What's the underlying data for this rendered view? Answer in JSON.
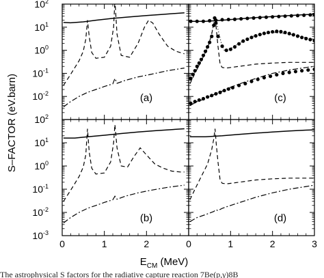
{
  "figure": {
    "ylabel": "S–FACTOR (eV.barn)",
    "xlabel_main": "E",
    "xlabel_sub": "CM",
    "xlabel_unit": " (MeV)",
    "caption_fragment": "The astrophysical S factors for the radiative capture reaction 7Be(p,γ)8B"
  },
  "chart_data": [
    {
      "panel": "a",
      "label": "(a)",
      "type": "line",
      "xlim": [
        0,
        3
      ],
      "ylim_log10": [
        -3,
        2
      ],
      "yscale": "log",
      "xticks": [
        "0",
        "1",
        "2",
        "3"
      ],
      "yticks": [
        -3,
        -2,
        -1,
        0,
        1,
        2
      ],
      "series": [
        {
          "style": "solid",
          "x": [
            0.03,
            0.2,
            0.5,
            0.8,
            1.2,
            1.6,
            2.0,
            2.4,
            2.9
          ],
          "y": [
            16,
            15.5,
            17,
            20,
            24,
            28,
            32,
            36,
            42
          ]
        },
        {
          "style": "dashed",
          "x": [
            0.03,
            0.2,
            0.4,
            0.5,
            0.56,
            0.6,
            0.64,
            0.7,
            0.8,
            1.0,
            1.15,
            1.22,
            1.25,
            1.3,
            1.4,
            1.6,
            1.8,
            1.95,
            2.05,
            2.15,
            2.3,
            2.5,
            2.7,
            2.9
          ],
          "y": [
            0.03,
            0.09,
            0.35,
            0.9,
            3,
            20,
            4,
            0.8,
            0.45,
            0.5,
            1.5,
            10,
            150,
            5,
            0.6,
            0.5,
            2,
            10,
            20,
            15,
            5,
            1.5,
            0.9,
            0.7
          ]
        },
        {
          "style": "dash-dot",
          "x": [
            0.03,
            0.2,
            0.4,
            0.6,
            0.8,
            1.0,
            1.2,
            1.25,
            1.3,
            1.5,
            1.8,
            2.1,
            2.5,
            2.9
          ],
          "y": [
            0.0035,
            0.006,
            0.01,
            0.015,
            0.02,
            0.027,
            0.035,
            0.06,
            0.037,
            0.05,
            0.07,
            0.09,
            0.13,
            0.17
          ]
        }
      ]
    },
    {
      "panel": "b",
      "label": "(b)",
      "type": "line",
      "xlim": [
        0,
        3
      ],
      "ylim_log10": [
        -3,
        2
      ],
      "yscale": "log",
      "xticks": [
        "0",
        "1",
        "2",
        "3"
      ],
      "yticks": [
        -3,
        -2,
        -1,
        0,
        1,
        2
      ],
      "series": [
        {
          "style": "solid",
          "x": [
            0.03,
            0.3,
            0.6,
            1.0,
            1.4,
            1.8,
            2.2,
            2.6,
            2.9
          ],
          "y": [
            16,
            16,
            18,
            21,
            25,
            29,
            33,
            37,
            40
          ]
        },
        {
          "style": "dashed",
          "x": [
            0.03,
            0.2,
            0.4,
            0.5,
            0.56,
            0.6,
            0.64,
            0.7,
            0.8,
            1.0,
            1.15,
            1.22,
            1.25,
            1.3,
            1.4,
            1.55,
            1.7,
            1.85,
            2.0,
            2.2,
            2.4,
            2.6,
            2.8,
            2.9
          ],
          "y": [
            0.03,
            0.09,
            0.35,
            0.9,
            3,
            40,
            4,
            0.8,
            0.45,
            0.5,
            1.5,
            10,
            60,
            6,
            1.0,
            0.9,
            2.5,
            6,
            3,
            1.2,
            0.8,
            0.6,
            0.55,
            0.55
          ]
        },
        {
          "style": "dash-dot",
          "x": [
            0.03,
            0.2,
            0.4,
            0.6,
            0.8,
            1.0,
            1.2,
            1.25,
            1.3,
            1.5,
            1.8,
            2.1,
            2.5,
            2.9
          ],
          "y": [
            0.0035,
            0.006,
            0.01,
            0.015,
            0.02,
            0.027,
            0.035,
            0.05,
            0.037,
            0.05,
            0.07,
            0.09,
            0.12,
            0.15
          ]
        }
      ]
    },
    {
      "panel": "c",
      "label": "(c)",
      "type": "line",
      "xlim": [
        0,
        3
      ],
      "ylim_log10": [
        -3,
        2
      ],
      "yscale": "log",
      "xticks": [
        "0",
        "1",
        "2",
        "3"
      ],
      "yticks": [
        -3,
        -2,
        -1,
        0,
        1,
        2
      ],
      "series": [
        {
          "style": "solid",
          "x": [
            0.03,
            0.4,
            0.8,
            1.2,
            1.6,
            2.0,
            2.4,
            2.8,
            3.0
          ],
          "y": [
            18,
            18,
            20,
            23,
            26,
            29,
            32,
            35,
            36
          ]
        },
        {
          "style": "dashed",
          "x": [
            0.03,
            0.15,
            0.3,
            0.45,
            0.55,
            0.6,
            0.63,
            0.66,
            0.7,
            0.75,
            0.8,
            0.9,
            1.2,
            1.6,
            2.0,
            2.4,
            2.8,
            3.0
          ],
          "y": [
            0.035,
            0.1,
            0.35,
            1.2,
            5,
            15,
            30,
            8,
            1.5,
            0.25,
            0.18,
            0.17,
            0.2,
            0.25,
            0.28,
            0.3,
            0.3,
            0.3
          ]
        },
        {
          "style": "dash-dot",
          "x": [
            0.03,
            0.2,
            0.4,
            0.6,
            0.8,
            1.0,
            1.3,
            1.6,
            2.0,
            2.4,
            2.8,
            3.0
          ],
          "y": [
            0.004,
            0.006,
            0.008,
            0.012,
            0.017,
            0.025,
            0.04,
            0.06,
            0.1,
            0.14,
            0.18,
            0.2
          ]
        },
        {
          "style": "dotted",
          "x": [
            0.03,
            0.2,
            0.35,
            0.5,
            0.58,
            0.62,
            0.66,
            0.7,
            0.78,
            0.85,
            1.0,
            1.3,
            1.6,
            2.0,
            2.4,
            2.8,
            3.0
          ],
          "y": [
            0.05,
            0.15,
            0.5,
            2.5,
            10,
            25,
            20,
            8,
            2,
            1,
            1.2,
            2.5,
            4.5,
            6,
            5,
            3.5,
            3
          ]
        },
        {
          "style": "markers",
          "x": [
            0.05,
            0.1,
            0.15,
            0.2,
            0.25,
            0.3,
            0.35,
            0.4,
            0.45,
            0.5,
            0.55,
            0.6,
            0.62,
            0.65,
            0.7,
            0.8,
            0.9,
            1.0,
            1.1,
            1.2,
            1.3,
            1.4,
            1.5,
            1.6,
            1.7,
            1.8,
            1.9,
            2.0,
            2.1,
            2.2,
            2.3,
            2.4,
            2.5,
            2.6,
            2.7,
            2.8,
            2.9,
            3.0
          ],
          "y": [
            0.06,
            0.09,
            0.13,
            0.2,
            0.28,
            0.4,
            0.6,
            0.9,
            1.4,
            2.2,
            4,
            12,
            25,
            15,
            4,
            1.5,
            1.0,
            1.1,
            1.4,
            1.9,
            2.5,
            3.0,
            3.6,
            4.2,
            4.8,
            5.4,
            5.9,
            6.3,
            6.6,
            6.4,
            5.9,
            5.3,
            4.7,
            4.1,
            3.6,
            3.2,
            2.9,
            2.6
          ]
        },
        {
          "style": "markers",
          "x": [
            0.05,
            0.2,
            0.35,
            0.5,
            0.65,
            0.8,
            0.95,
            1.1,
            1.25,
            1.4,
            1.55,
            1.7,
            1.85,
            2.0,
            2.15,
            2.3,
            2.45,
            2.6,
            2.75,
            2.9,
            3.0
          ],
          "y": [
            18,
            18,
            18,
            19,
            20,
            21,
            21.5,
            22,
            23,
            24,
            25,
            26,
            27,
            28,
            29,
            30,
            31,
            32,
            33,
            34,
            35
          ]
        },
        {
          "style": "markers",
          "x": [
            0.05,
            0.15,
            0.25,
            0.35,
            0.45,
            0.55,
            0.65,
            0.75,
            0.85,
            0.95,
            1.05,
            1.2,
            1.35,
            1.5,
            1.65,
            1.8,
            1.95,
            2.1,
            2.25,
            2.4,
            2.55,
            2.7,
            2.85,
            3.0
          ],
          "y": [
            0.005,
            0.006,
            0.007,
            0.008,
            0.0095,
            0.011,
            0.013,
            0.015,
            0.018,
            0.021,
            0.024,
            0.03,
            0.036,
            0.045,
            0.055,
            0.065,
            0.075,
            0.087,
            0.1,
            0.11,
            0.12,
            0.13,
            0.14,
            0.15
          ]
        }
      ]
    },
    {
      "panel": "d",
      "label": "(d)",
      "type": "line",
      "xlim": [
        0,
        3
      ],
      "ylim_log10": [
        -3,
        2
      ],
      "yscale": "log",
      "xticks": [
        "0",
        "1",
        "2",
        "3"
      ],
      "yticks": [
        -3,
        -2,
        -1,
        0,
        1,
        2
      ],
      "series": [
        {
          "style": "solid",
          "x": [
            0.03,
            0.4,
            0.8,
            1.2,
            1.6,
            2.0,
            2.4,
            2.8,
            3.0
          ],
          "y": [
            18,
            18,
            20,
            23,
            26,
            29,
            32,
            35,
            36
          ]
        },
        {
          "style": "dashed",
          "x": [
            0.03,
            0.15,
            0.3,
            0.45,
            0.55,
            0.6,
            0.63,
            0.66,
            0.7,
            0.75,
            0.8,
            0.9,
            1.2,
            1.6,
            2.0,
            2.4,
            2.8,
            3.0
          ],
          "y": [
            0.035,
            0.1,
            0.35,
            1.2,
            5,
            15,
            40,
            8,
            1.5,
            0.25,
            0.18,
            0.17,
            0.2,
            0.25,
            0.28,
            0.3,
            0.3,
            0.3
          ]
        },
        {
          "style": "dash-dot",
          "x": [
            0.03,
            0.2,
            0.4,
            0.6,
            0.65,
            0.7,
            0.8,
            1.0,
            1.3,
            1.6,
            2.0,
            2.4,
            2.8,
            3.0
          ],
          "y": [
            0.004,
            0.006,
            0.008,
            0.011,
            0.013,
            0.012,
            0.015,
            0.02,
            0.03,
            0.045,
            0.07,
            0.1,
            0.13,
            0.15
          ]
        }
      ]
    }
  ]
}
